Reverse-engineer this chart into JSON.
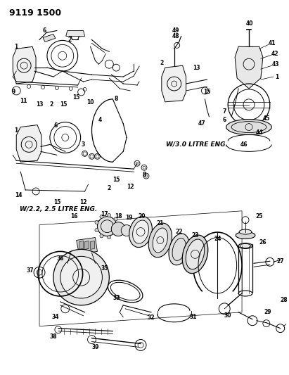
{
  "title": "9119 1500",
  "background_color": "#ffffff",
  "text_color": "#000000",
  "label1": "W/2.2, 2.5 LITRE ENG.",
  "label2": "W/3.0 LITRE ENG.",
  "fig_width": 4.11,
  "fig_height": 5.33,
  "dpi": 100
}
